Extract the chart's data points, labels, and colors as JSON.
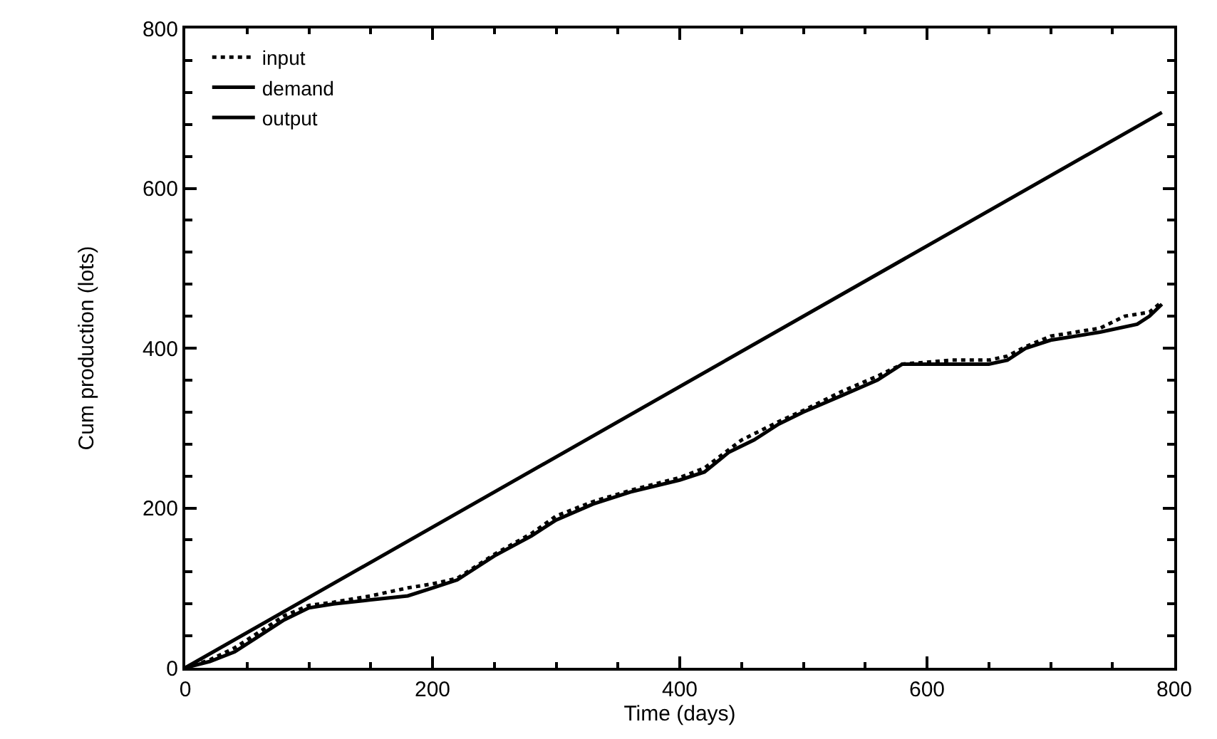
{
  "chart_data": {
    "type": "line",
    "xlabel": "Time (days)",
    "ylabel": "Cum production (lots)",
    "xlim": [
      0,
      800
    ],
    "ylim": [
      0,
      800
    ],
    "xticks": [
      0,
      200,
      400,
      600,
      800
    ],
    "yticks": [
      0,
      200,
      400,
      600,
      800
    ],
    "legend": "top left",
    "marker": "none",
    "series": [
      {
        "name": "input",
        "color": "#000000",
        "line_style": "dotted",
        "x": [
          0,
          20,
          40,
          60,
          80,
          100,
          120,
          150,
          180,
          200,
          220,
          250,
          280,
          300,
          330,
          360,
          400,
          420,
          450,
          480,
          500,
          530,
          560,
          580,
          620,
          650,
          665,
          680,
          700,
          740,
          760,
          780,
          790
        ],
        "values": [
          0,
          10,
          25,
          45,
          65,
          78,
          82,
          90,
          100,
          105,
          112,
          142,
          168,
          190,
          208,
          222,
          238,
          250,
          285,
          308,
          322,
          345,
          365,
          380,
          385,
          385,
          390,
          402,
          415,
          425,
          440,
          445,
          458
        ]
      },
      {
        "name": "demand",
        "color": "#000000",
        "line_style": "solid",
        "x": [
          0,
          790
        ],
        "values": [
          0,
          695
        ]
      },
      {
        "name": "output",
        "color": "#000000",
        "line_style": "solid",
        "x": [
          0,
          20,
          40,
          60,
          80,
          100,
          120,
          150,
          180,
          200,
          220,
          250,
          280,
          300,
          330,
          360,
          400,
          420,
          440,
          460,
          480,
          500,
          530,
          560,
          580,
          600,
          650,
          665,
          680,
          700,
          740,
          770,
          780,
          790
        ],
        "values": [
          0,
          8,
          20,
          40,
          60,
          75,
          80,
          85,
          90,
          100,
          110,
          140,
          165,
          185,
          205,
          220,
          235,
          245,
          270,
          285,
          305,
          320,
          340,
          360,
          380,
          380,
          380,
          385,
          400,
          410,
          420,
          430,
          440,
          455
        ]
      }
    ]
  }
}
